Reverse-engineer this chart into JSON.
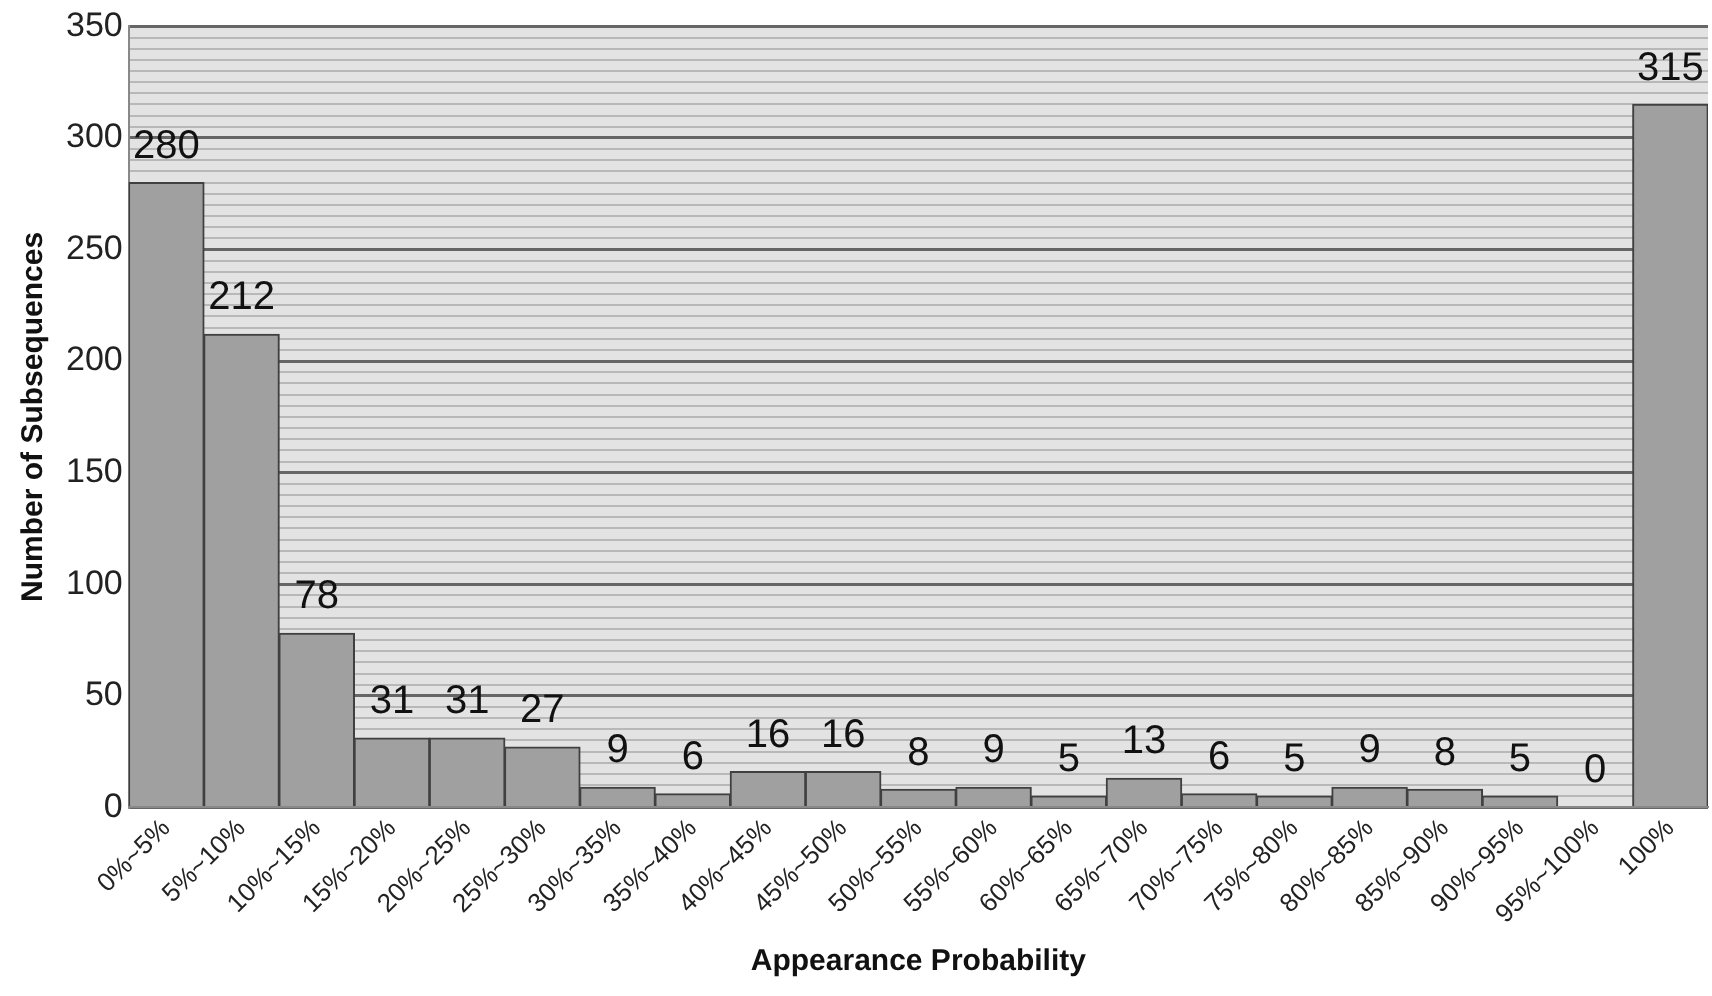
{
  "chart_data": {
    "type": "bar",
    "xlabel": "Appearance Probability",
    "ylabel": "Number of Subsequences",
    "categories": [
      "0%~5%",
      "5%~10%",
      "10%~15%",
      "15%~20%",
      "20%~25%",
      "25%~30%",
      "30%~35%",
      "35%~40%",
      "40%~45%",
      "45%~50%",
      "50%~55%",
      "55%~60%",
      "60%~65%",
      "65%~70%",
      "70%~75%",
      "75%~80%",
      "80%~85%",
      "85%~90%",
      "90%~95%",
      "95%~100%",
      "100%"
    ],
    "values": [
      280,
      212,
      78,
      31,
      31,
      27,
      9,
      6,
      16,
      16,
      8,
      9,
      5,
      13,
      6,
      5,
      9,
      8,
      5,
      0,
      315
    ],
    "color": "#a0a0a0",
    "data_labels": true,
    "grid": "y",
    "legend": false,
    "ylim": [
      0,
      350
    ],
    "yticks": [
      0,
      {
        "value": 5,
        "label": null
      },
      {
        "value": 10,
        "label": null
      },
      {
        "value": 15,
        "label": null
      },
      {
        "value": 20,
        "label": null
      },
      {
        "value": 25,
        "label": null
      },
      {
        "value": 30,
        "label": null
      },
      {
        "value": 35,
        "label": null
      },
      {
        "value": 40,
        "label": null
      },
      {
        "value": 45,
        "label": null
      },
      50,
      {
        "value": 55,
        "label": null
      },
      {
        "value": 60,
        "label": null
      },
      {
        "value": 65,
        "label": null
      },
      {
        "value": 70,
        "label": null
      },
      {
        "value": 75,
        "label": null
      },
      {
        "value": 80,
        "label": null
      },
      {
        "value": 85,
        "label": null
      },
      {
        "value": 90,
        "label": null
      },
      {
        "value": 95,
        "label": null
      },
      100,
      {
        "value": 105,
        "label": null
      },
      {
        "value": 110,
        "label": null
      },
      {
        "value": 115,
        "label": null
      },
      {
        "value": 120,
        "label": null
      },
      {
        "value": 125,
        "label": null
      },
      {
        "value": 130,
        "label": null
      },
      {
        "value": 135,
        "label": null
      },
      {
        "value": 140,
        "label": null
      },
      {
        "value": 145,
        "label": null
      },
      150,
      {
        "value": 155,
        "label": null
      },
      {
        "value": 160,
        "label": null
      },
      {
        "value": 165,
        "label": null
      },
      {
        "value": 170,
        "label": null
      },
      {
        "value": 175,
        "label": null
      },
      {
        "value": 180,
        "label": null
      },
      {
        "value": 185,
        "label": null
      },
      {
        "value": 190,
        "label": null
      },
      {
        "value": 195,
        "label": null
      },
      200,
      {
        "value": 205,
        "label": null
      },
      {
        "value": 210,
        "label": null
      },
      {
        "value": 215,
        "label": null
      },
      {
        "value": 220,
        "label": null
      },
      {
        "value": 225,
        "label": null
      },
      {
        "value": 230,
        "label": null
      },
      {
        "value": 235,
        "label": null
      },
      {
        "value": 240,
        "label": null
      },
      {
        "value": 245,
        "label": null
      },
      250,
      {
        "value": 255,
        "label": null
      },
      {
        "value": 260,
        "label": null
      },
      {
        "value": 265,
        "label": null
      },
      {
        "value": 270,
        "label": null
      },
      {
        "value": 275,
        "label": null
      },
      {
        "value": 280,
        "label": null
      },
      {
        "value": 285,
        "label": null
      },
      {
        "value": 290,
        "label": null
      },
      {
        "value": 295,
        "label": null
      },
      300,
      {
        "value": 305,
        "label": null
      },
      {
        "value": 310,
        "label": null
      },
      {
        "value": 315,
        "label": null
      },
      {
        "value": 320,
        "label": null
      },
      {
        "value": 325,
        "label": null
      },
      {
        "value": 330,
        "label": null
      },
      {
        "value": 335,
        "label": null
      },
      {
        "value": 340,
        "label": null
      },
      {
        "value": 345,
        "label": null
      },
      350
    ]
  }
}
